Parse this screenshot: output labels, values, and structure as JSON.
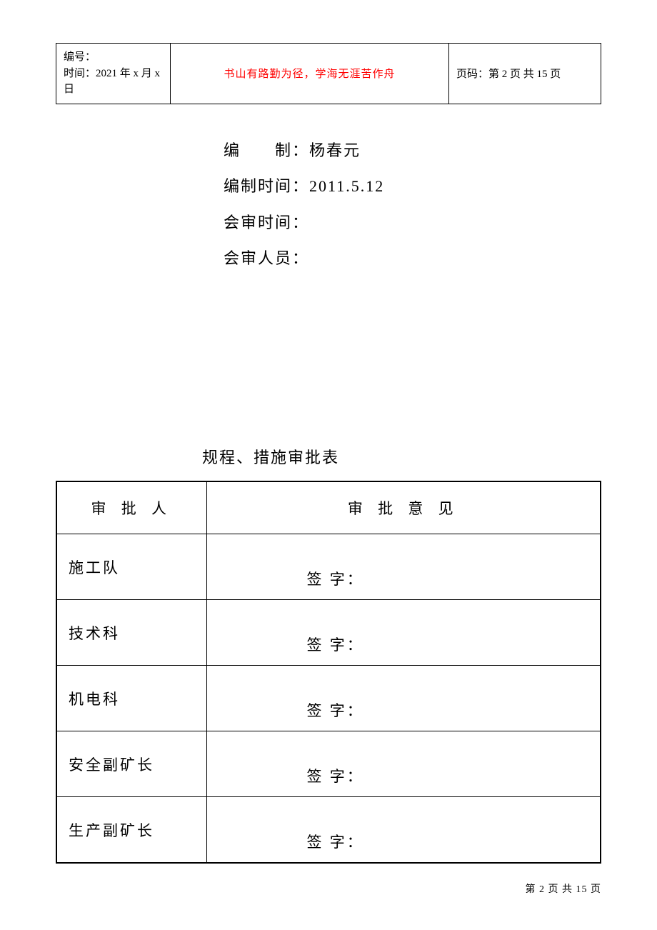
{
  "header": {
    "left_line1": "编号：",
    "left_line2": "时间：2021 年 x 月 x 日",
    "center": "书山有路勤为径，学海无涯苦作舟",
    "right": "页码：第 2 页  共 15 页"
  },
  "info": {
    "compiler_label": "编　　制：",
    "compiler_value": " 杨春元",
    "compile_time_label": "编制时间：",
    "compile_time_value": "2011.5.12",
    "review_time_label": "会审时间：",
    "review_time_value": "",
    "reviewers_label": "会审人员：",
    "reviewers_value": ""
  },
  "table": {
    "title": "规程、措施审批表",
    "header_approver": "审  批  人",
    "header_opinion": "审  批  意  见",
    "signature_label": "签 字：",
    "rows": [
      {
        "approver": "施工队"
      },
      {
        "approver": "技术科"
      },
      {
        "approver": "机电科"
      },
      {
        "approver": "安全副矿长"
      },
      {
        "approver": "生产副矿长"
      }
    ]
  },
  "footer": {
    "text": "第 2 页 共 15 页"
  },
  "colors": {
    "text": "#000000",
    "accent": "#ff0000",
    "border": "#000000",
    "background": "#ffffff"
  }
}
